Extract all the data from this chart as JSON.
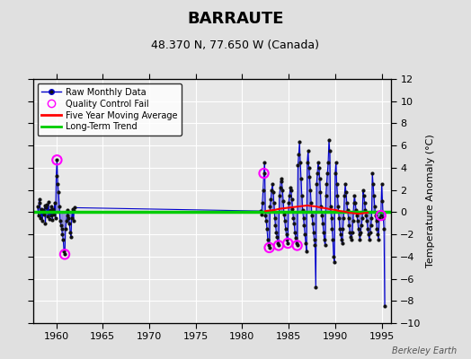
{
  "title": "BARRAUTE",
  "subtitle": "48.370 N, 77.650 W (Canada)",
  "ylabel": "Temperature Anomaly (°C)",
  "watermark": "Berkeley Earth",
  "ylim": [
    -10,
    12
  ],
  "xlim": [
    1957.5,
    1996.0
  ],
  "yticks": [
    -10,
    -8,
    -6,
    -4,
    -2,
    0,
    2,
    4,
    6,
    8,
    10,
    12
  ],
  "xticks": [
    1960,
    1965,
    1970,
    1975,
    1980,
    1985,
    1990,
    1995
  ],
  "bg_color": "#e0e0e0",
  "plot_bg": "#e8e8e8",
  "grid_color": "#ffffff",
  "raw_color": "#0000cc",
  "raw_fill": "#8888dd",
  "dot_color": "#111111",
  "qc_color": "#ff00ff",
  "ma_color": "#ff0000",
  "trend_color": "#00cc00",
  "raw_data": [
    [
      1958.0,
      0.5
    ],
    [
      1958.083,
      -0.3
    ],
    [
      1958.167,
      1.2
    ],
    [
      1958.25,
      0.8
    ],
    [
      1958.333,
      -0.5
    ],
    [
      1958.417,
      0.3
    ],
    [
      1958.5,
      -0.8
    ],
    [
      1958.583,
      0.2
    ],
    [
      1958.667,
      -0.2
    ],
    [
      1958.75,
      0.6
    ],
    [
      1958.833,
      -1.0
    ],
    [
      1958.917,
      0.4
    ],
    [
      1959.0,
      0.7
    ],
    [
      1959.083,
      -0.4
    ],
    [
      1959.167,
      0.9
    ],
    [
      1959.25,
      -0.6
    ],
    [
      1959.333,
      0.2
    ],
    [
      1959.417,
      -0.3
    ],
    [
      1959.5,
      0.5
    ],
    [
      1959.583,
      -0.7
    ],
    [
      1959.667,
      0.3
    ],
    [
      1959.75,
      -0.2
    ],
    [
      1959.833,
      0.8
    ],
    [
      1959.917,
      -0.5
    ],
    [
      1960.0,
      3.3
    ],
    [
      1960.083,
      4.7
    ],
    [
      1960.167,
      2.5
    ],
    [
      1960.25,
      1.8
    ],
    [
      1960.333,
      0.5
    ],
    [
      1960.417,
      -0.8
    ],
    [
      1960.5,
      -1.2
    ],
    [
      1960.583,
      -1.5
    ],
    [
      1960.667,
      -2.0
    ],
    [
      1960.75,
      -2.5
    ],
    [
      1960.833,
      -3.5
    ],
    [
      1960.917,
      -3.8
    ],
    [
      1961.0,
      -1.5
    ],
    [
      1961.083,
      -0.8
    ],
    [
      1961.167,
      -0.3
    ],
    [
      1961.25,
      0.2
    ],
    [
      1961.333,
      -0.5
    ],
    [
      1961.417,
      -1.0
    ],
    [
      1961.5,
      -1.8
    ],
    [
      1961.583,
      -2.2
    ],
    [
      1961.667,
      -0.5
    ],
    [
      1961.75,
      0.3
    ],
    [
      1961.833,
      -0.8
    ],
    [
      1961.917,
      0.1
    ],
    [
      1962.0,
      0.4
    ],
    [
      1982.0,
      0.1
    ],
    [
      1982.083,
      -0.2
    ],
    [
      1982.167,
      0.8
    ],
    [
      1982.25,
      2.0
    ],
    [
      1982.333,
      3.5
    ],
    [
      1982.417,
      4.5
    ],
    [
      1982.5,
      -0.3
    ],
    [
      1982.583,
      -0.8
    ],
    [
      1982.667,
      -1.5
    ],
    [
      1982.75,
      -2.5
    ],
    [
      1982.833,
      -3.0
    ],
    [
      1982.917,
      -3.2
    ],
    [
      1983.0,
      0.5
    ],
    [
      1983.083,
      1.2
    ],
    [
      1983.167,
      2.0
    ],
    [
      1983.25,
      2.5
    ],
    [
      1983.333,
      1.8
    ],
    [
      1983.417,
      0.8
    ],
    [
      1983.5,
      -0.5
    ],
    [
      1983.583,
      -1.2
    ],
    [
      1983.667,
      -1.8
    ],
    [
      1983.75,
      -2.2
    ],
    [
      1983.833,
      -2.8
    ],
    [
      1983.917,
      -3.0
    ],
    [
      1984.0,
      1.5
    ],
    [
      1984.083,
      2.2
    ],
    [
      1984.167,
      3.0
    ],
    [
      1984.25,
      2.8
    ],
    [
      1984.333,
      2.0
    ],
    [
      1984.417,
      1.0
    ],
    [
      1984.5,
      -0.2
    ],
    [
      1984.583,
      -0.8
    ],
    [
      1984.667,
      -1.5
    ],
    [
      1984.75,
      -2.0
    ],
    [
      1984.833,
      -2.5
    ],
    [
      1984.917,
      -2.8
    ],
    [
      1985.0,
      0.8
    ],
    [
      1985.083,
      1.5
    ],
    [
      1985.167,
      2.2
    ],
    [
      1985.25,
      2.0
    ],
    [
      1985.333,
      1.2
    ],
    [
      1985.417,
      0.3
    ],
    [
      1985.5,
      -0.5
    ],
    [
      1985.583,
      -1.0
    ],
    [
      1985.667,
      -1.8
    ],
    [
      1985.75,
      -2.3
    ],
    [
      1985.833,
      -2.8
    ],
    [
      1985.917,
      -3.0
    ],
    [
      1986.0,
      4.2
    ],
    [
      1986.083,
      5.2
    ],
    [
      1986.167,
      6.3
    ],
    [
      1986.25,
      4.5
    ],
    [
      1986.333,
      3.0
    ],
    [
      1986.417,
      1.5
    ],
    [
      1986.5,
      0.2
    ],
    [
      1986.583,
      -0.5
    ],
    [
      1986.667,
      -1.2
    ],
    [
      1986.75,
      -2.0
    ],
    [
      1986.833,
      -2.8
    ],
    [
      1986.917,
      -3.5
    ],
    [
      1987.0,
      4.5
    ],
    [
      1987.083,
      5.5
    ],
    [
      1987.167,
      4.0
    ],
    [
      1987.25,
      3.2
    ],
    [
      1987.333,
      2.0
    ],
    [
      1987.417,
      0.8
    ],
    [
      1987.5,
      -0.3
    ],
    [
      1987.583,
      -1.0
    ],
    [
      1987.667,
      -1.8
    ],
    [
      1987.75,
      -2.5
    ],
    [
      1987.833,
      -3.0
    ],
    [
      1987.917,
      -6.8
    ],
    [
      1988.0,
      2.5
    ],
    [
      1988.083,
      3.5
    ],
    [
      1988.167,
      4.5
    ],
    [
      1988.25,
      4.0
    ],
    [
      1988.333,
      3.0
    ],
    [
      1988.417,
      1.8
    ],
    [
      1988.5,
      0.5
    ],
    [
      1988.583,
      -0.3
    ],
    [
      1988.667,
      -1.0
    ],
    [
      1988.75,
      -1.8
    ],
    [
      1988.833,
      -2.5
    ],
    [
      1988.917,
      -3.0
    ],
    [
      1989.0,
      1.5
    ],
    [
      1989.083,
      2.5
    ],
    [
      1989.167,
      3.5
    ],
    [
      1989.25,
      4.5
    ],
    [
      1989.333,
      6.5
    ],
    [
      1989.417,
      5.5
    ],
    [
      1989.5,
      0.5
    ],
    [
      1989.583,
      -0.5
    ],
    [
      1989.667,
      -1.5
    ],
    [
      1989.75,
      -2.5
    ],
    [
      1989.833,
      -4.0
    ],
    [
      1989.917,
      -4.5
    ],
    [
      1990.0,
      3.5
    ],
    [
      1990.083,
      4.5
    ],
    [
      1990.167,
      2.5
    ],
    [
      1990.25,
      1.5
    ],
    [
      1990.333,
      0.5
    ],
    [
      1990.417,
      -0.5
    ],
    [
      1990.5,
      -1.5
    ],
    [
      1990.583,
      -2.0
    ],
    [
      1990.667,
      -2.5
    ],
    [
      1990.75,
      -2.8
    ],
    [
      1990.833,
      -1.5
    ],
    [
      1990.917,
      -0.5
    ],
    [
      1991.0,
      1.5
    ],
    [
      1991.083,
      2.5
    ],
    [
      1991.167,
      1.8
    ],
    [
      1991.25,
      0.8
    ],
    [
      1991.333,
      0.2
    ],
    [
      1991.417,
      -0.5
    ],
    [
      1991.5,
      -1.2
    ],
    [
      1991.583,
      -1.8
    ],
    [
      1991.667,
      -2.2
    ],
    [
      1991.75,
      -2.5
    ],
    [
      1991.833,
      -1.8
    ],
    [
      1991.917,
      -0.8
    ],
    [
      1992.0,
      0.8
    ],
    [
      1992.083,
      1.5
    ],
    [
      1992.167,
      0.8
    ],
    [
      1992.25,
      0.2
    ],
    [
      1992.333,
      -0.3
    ],
    [
      1992.417,
      -0.8
    ],
    [
      1992.5,
      -1.5
    ],
    [
      1992.583,
      -2.0
    ],
    [
      1992.667,
      -2.5
    ],
    [
      1992.75,
      -1.8
    ],
    [
      1992.833,
      -1.2
    ],
    [
      1992.917,
      -0.5
    ],
    [
      1993.0,
      2.0
    ],
    [
      1993.083,
      1.5
    ],
    [
      1993.167,
      0.8
    ],
    [
      1993.25,
      0.2
    ],
    [
      1993.333,
      -0.3
    ],
    [
      1993.417,
      -0.8
    ],
    [
      1993.5,
      -1.5
    ],
    [
      1993.583,
      -2.0
    ],
    [
      1993.667,
      -2.5
    ],
    [
      1993.75,
      -1.8
    ],
    [
      1993.833,
      -1.2
    ],
    [
      1993.917,
      -0.5
    ],
    [
      1994.0,
      3.5
    ],
    [
      1994.083,
      2.5
    ],
    [
      1994.167,
      1.5
    ],
    [
      1994.25,
      0.5
    ],
    [
      1994.333,
      -0.3
    ],
    [
      1994.417,
      -0.8
    ],
    [
      1994.5,
      -1.5
    ],
    [
      1994.583,
      -2.0
    ],
    [
      1994.667,
      -2.5
    ],
    [
      1994.75,
      -0.5
    ],
    [
      1994.917,
      -0.3
    ],
    [
      1995.0,
      2.5
    ],
    [
      1995.083,
      1.0
    ],
    [
      1995.167,
      -0.5
    ],
    [
      1995.25,
      -1.5
    ],
    [
      1995.333,
      -8.5
    ]
  ],
  "qc_fail_points": [
    [
      1960.083,
      4.7
    ],
    [
      1960.917,
      -3.8
    ],
    [
      1982.333,
      3.5
    ],
    [
      1982.917,
      -3.2
    ],
    [
      1983.917,
      -3.0
    ],
    [
      1984.917,
      -2.8
    ],
    [
      1985.917,
      -3.0
    ],
    [
      1994.917,
      -0.3
    ]
  ],
  "moving_avg": [
    [
      1982.5,
      0.1
    ],
    [
      1983.0,
      0.15
    ],
    [
      1983.5,
      0.2
    ],
    [
      1984.0,
      0.3
    ],
    [
      1984.5,
      0.35
    ],
    [
      1985.0,
      0.4
    ],
    [
      1985.5,
      0.45
    ],
    [
      1986.0,
      0.5
    ],
    [
      1986.5,
      0.55
    ],
    [
      1987.0,
      0.6
    ],
    [
      1987.5,
      0.55
    ],
    [
      1988.0,
      0.5
    ],
    [
      1988.5,
      0.4
    ],
    [
      1989.0,
      0.35
    ],
    [
      1989.5,
      0.25
    ],
    [
      1990.0,
      0.2
    ],
    [
      1990.5,
      0.1
    ],
    [
      1991.0,
      0.05
    ],
    [
      1991.5,
      -0.05
    ],
    [
      1992.0,
      -0.1
    ],
    [
      1992.5,
      -0.15
    ],
    [
      1993.0,
      -0.1
    ],
    [
      1993.5,
      -0.05
    ]
  ],
  "trend_x": [
    1957.5,
    1996.0
  ],
  "trend_y": [
    0.0,
    0.0
  ],
  "title_fontsize": 13,
  "subtitle_fontsize": 9,
  "tick_fontsize": 8,
  "ylabel_fontsize": 8,
  "legend_fontsize": 7,
  "watermark_fontsize": 7
}
